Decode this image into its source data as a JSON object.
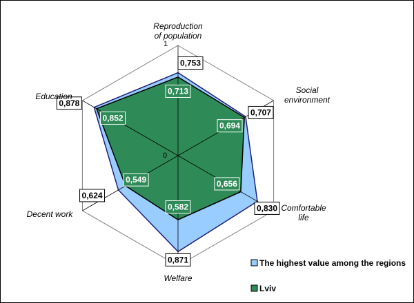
{
  "chart_data": {
    "type": "radar",
    "categories": [
      "Reproduction of population",
      "Social environment",
      "Comfortable life",
      "Welfare",
      "Decent work",
      "Education"
    ],
    "category_lines": [
      [
        "Reproduction",
        "of population"
      ],
      [
        "Social",
        "environment"
      ],
      [
        "Comfortable",
        "life"
      ],
      [
        "Welfare"
      ],
      [
        "Decent work"
      ],
      [
        "Education"
      ]
    ],
    "series": [
      {
        "name": "The highest value among the regions",
        "values": [
          0.753,
          0.707,
          0.83,
          0.871,
          0.624,
          0.878
        ],
        "labels": [
          "0,753",
          "0,707",
          "0,830",
          "0,871",
          "0,624",
          "0,878"
        ],
        "color": "#99ccff"
      },
      {
        "name": "Lviv",
        "values": [
          0.713,
          0.694,
          0.656,
          0.582,
          0.549,
          0.852
        ],
        "labels": [
          "0,713",
          "0,694",
          "0,656",
          "0,582",
          "0,549",
          "0,852"
        ],
        "color": "#2e8b57"
      }
    ],
    "rlim": [
      0,
      1
    ],
    "tick_labels": [
      "0",
      "1"
    ],
    "grid": true,
    "legend": "bottom-right"
  }
}
